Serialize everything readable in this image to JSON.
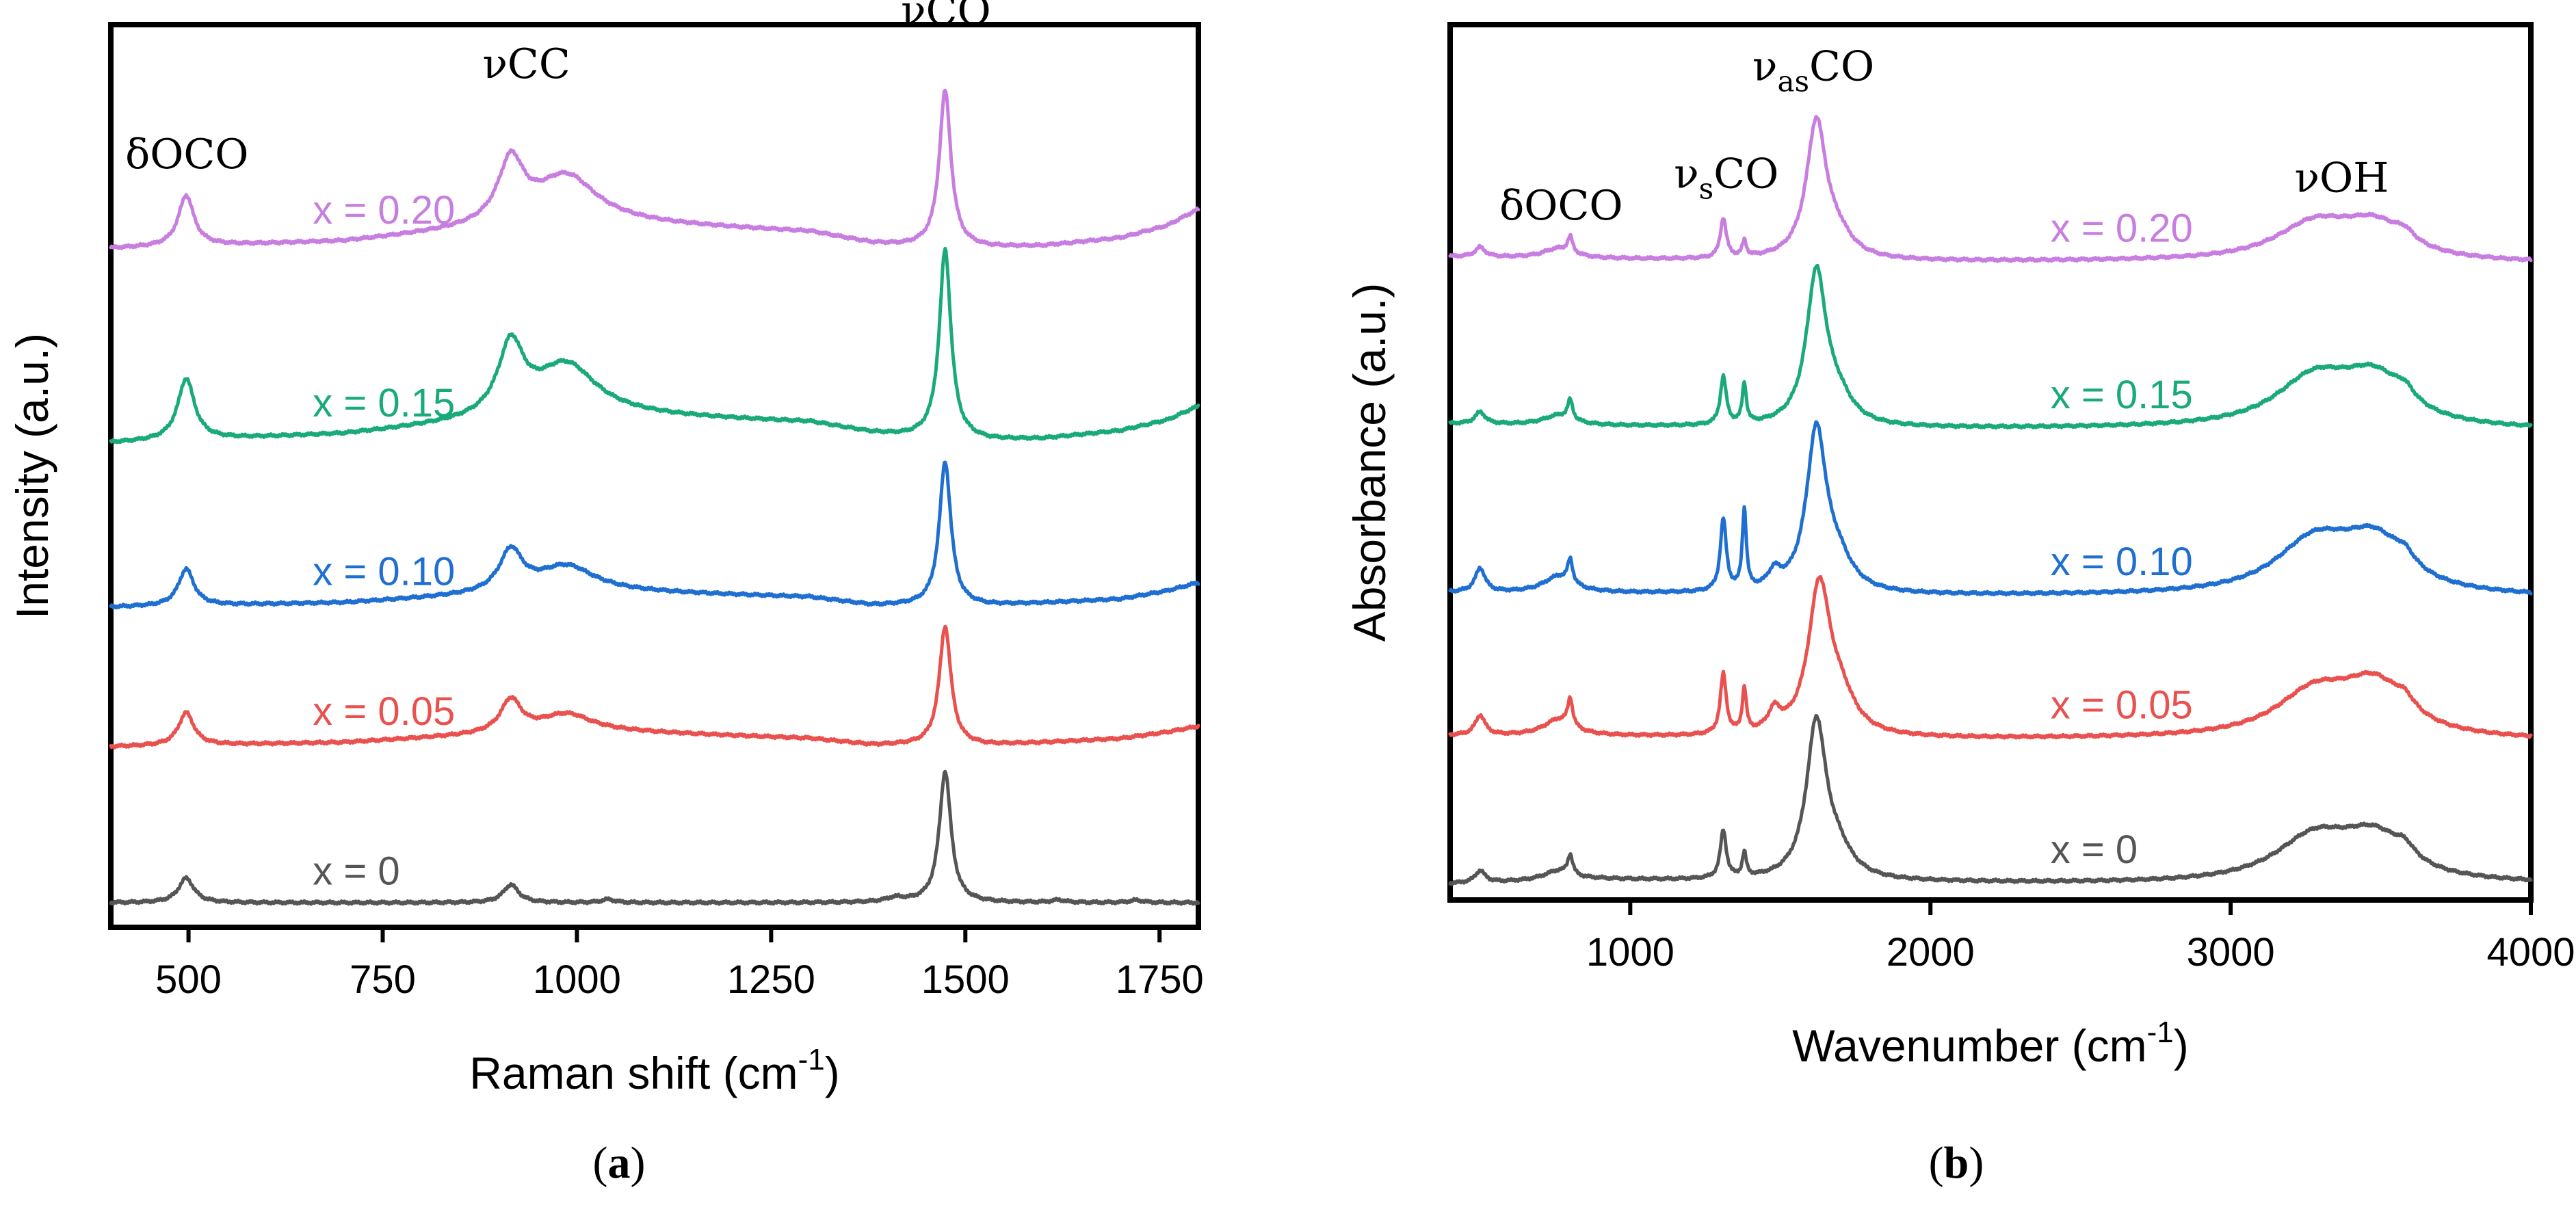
{
  "chart_data": [
    {
      "type": "line",
      "panel": "a",
      "caption_open": "(",
      "caption_letter": "a",
      "caption_close": ")",
      "xlabel_main": "Raman shift (cm",
      "xlabel_sup": "-1",
      "xlabel_close": ")",
      "ylabel": "Intensity (a.u.)",
      "xlim": [
        400,
        1800
      ],
      "xticks": [
        500,
        750,
        1000,
        1250,
        1500,
        1750
      ],
      "xtick_labels": [
        "500",
        "750",
        "1000",
        "1250",
        "1500",
        "1750"
      ],
      "ylim": [
        0,
        11
      ],
      "yticks_shown": false,
      "peak_annotations": [
        {
          "id": "docco",
          "main": "δOCO",
          "sub": "",
          "tail": "",
          "x": 498,
          "y": 9.25
        },
        {
          "id": "vcc",
          "main": "νCC",
          "sub": "",
          "tail": "",
          "x": 935,
          "y": 10.35
        },
        {
          "id": "vco",
          "main": "νCO",
          "sub": "",
          "tail": "",
          "x": 1475,
          "y": 11.0
        }
      ],
      "series": [
        {
          "name": "x = 0.20",
          "color": "#c77ee0",
          "label_x": 660,
          "offset": 8.25,
          "baseline": [
            [
              400,
              0.02
            ],
            [
              700,
              0.1
            ],
            [
              1000,
              0.35
            ],
            [
              1300,
              0.22
            ],
            [
              1380,
              0.08
            ],
            [
              1420,
              0.05
            ],
            [
              1530,
              0.03
            ],
            [
              1600,
              0.05
            ],
            [
              1700,
              0.15
            ],
            [
              1760,
              0.3
            ],
            [
              1800,
              0.5
            ]
          ],
          "peaks": [
            {
              "center": 497,
              "height": 0.62,
              "width": 12
            },
            {
              "center": 915,
              "height": 0.75,
              "width": 20
            },
            {
              "center": 985,
              "height": 0.55,
              "width": 48
            },
            {
              "center": 1474,
              "height": 1.9,
              "width": 9
            }
          ]
        },
        {
          "name": "x = 0.15",
          "color": "#1aaa78",
          "label_x": 660,
          "offset": 5.9,
          "baseline": [
            [
              400,
              0.0
            ],
            [
              700,
              0.1
            ],
            [
              1000,
              0.35
            ],
            [
              1300,
              0.25
            ],
            [
              1380,
              0.12
            ],
            [
              1420,
              0.08
            ],
            [
              1530,
              0.03
            ],
            [
              1600,
              0.05
            ],
            [
              1700,
              0.15
            ],
            [
              1760,
              0.28
            ],
            [
              1800,
              0.45
            ]
          ],
          "peaks": [
            {
              "center": 497,
              "height": 0.75,
              "width": 13
            },
            {
              "center": 915,
              "height": 0.85,
              "width": 20
            },
            {
              "center": 985,
              "height": 0.6,
              "width": 48
            },
            {
              "center": 1474,
              "height": 2.3,
              "width": 9
            }
          ]
        },
        {
          "name": "x = 0.10",
          "color": "#1f6fd1",
          "label_x": 660,
          "offset": 3.9,
          "baseline": [
            [
              400,
              0.0
            ],
            [
              700,
              0.05
            ],
            [
              1000,
              0.2
            ],
            [
              1300,
              0.12
            ],
            [
              1380,
              0.02
            ],
            [
              1420,
              0.02
            ],
            [
              1530,
              0.02
            ],
            [
              1600,
              0.05
            ],
            [
              1700,
              0.1
            ],
            [
              1760,
              0.2
            ],
            [
              1800,
              0.3
            ]
          ],
          "peaks": [
            {
              "center": 497,
              "height": 0.45,
              "width": 12
            },
            {
              "center": 915,
              "height": 0.5,
              "width": 18
            },
            {
              "center": 985,
              "height": 0.3,
              "width": 45
            },
            {
              "center": 1474,
              "height": 1.75,
              "width": 9
            }
          ]
        },
        {
          "name": "x = 0.05",
          "color": "#e9514f",
          "label_x": 660,
          "offset": 2.2,
          "baseline": [
            [
              400,
              0.0
            ],
            [
              700,
              0.05
            ],
            [
              1000,
              0.2
            ],
            [
              1300,
              0.1
            ],
            [
              1380,
              0.02
            ],
            [
              1420,
              0.02
            ],
            [
              1530,
              0.02
            ],
            [
              1600,
              0.05
            ],
            [
              1700,
              0.1
            ],
            [
              1760,
              0.18
            ],
            [
              1800,
              0.25
            ]
          ],
          "peaks": [
            {
              "center": 497,
              "height": 0.4,
              "width": 12
            },
            {
              "center": 915,
              "height": 0.4,
              "width": 16
            },
            {
              "center": 985,
              "height": 0.2,
              "width": 40
            },
            {
              "center": 1474,
              "height": 1.45,
              "width": 9
            }
          ]
        },
        {
          "name": "x = 0",
          "color": "#555555",
          "label_x": 660,
          "offset": 0.3,
          "baseline": [
            [
              400,
              0.0
            ],
            [
              1800,
              0.0
            ]
          ],
          "peaks": [
            {
              "center": 497,
              "height": 0.3,
              "width": 12
            },
            {
              "center": 915,
              "height": 0.22,
              "width": 12
            },
            {
              "center": 1040,
              "height": 0.04,
              "width": 10
            },
            {
              "center": 1410,
              "height": 0.05,
              "width": 15
            },
            {
              "center": 1474,
              "height": 1.6,
              "width": 9
            },
            {
              "center": 1620,
              "height": 0.03,
              "width": 10
            },
            {
              "center": 1720,
              "height": 0.03,
              "width": 10
            }
          ]
        }
      ]
    },
    {
      "type": "line",
      "panel": "b",
      "caption_open": "(",
      "caption_letter": "b",
      "caption_close": ")",
      "xlabel_main": "Wavenumber (cm",
      "xlabel_sup": "-1",
      "xlabel_close": ")",
      "ylabel": "Absorbance (a.u.)",
      "xlim": [
        400,
        4000
      ],
      "xticks": [
        1000,
        2000,
        3000,
        4000
      ],
      "xtick_labels": [
        "1000",
        "2000",
        "3000",
        "4000"
      ],
      "ylim": [
        0,
        11
      ],
      "yticks_shown": false,
      "peak_annotations": [
        {
          "id": "docco",
          "main": "δOCO",
          "sub": "",
          "tail": "",
          "x": 770,
          "y": 8.55
        },
        {
          "id": "vsco",
          "main": "ν",
          "sub": "s",
          "tail": "CO",
          "x": 1320,
          "y": 8.95
        },
        {
          "id": "vasco",
          "main": "ν",
          "sub": "as",
          "tail": "CO",
          "x": 1610,
          "y": 10.3
        },
        {
          "id": "voh",
          "main": "νOH",
          "sub": "",
          "tail": "",
          "x": 3370,
          "y": 8.9
        }
      ],
      "series": [
        {
          "name": "x = 0.20",
          "color": "#c77ee0",
          "label_x": 2400,
          "offset": 8.0,
          "baseline": [
            [
              400,
              0.08
            ],
            [
              900,
              0.05
            ],
            [
              1800,
              0.02
            ],
            [
              2800,
              0.02
            ],
            [
              4000,
              0.0
            ]
          ],
          "peaks": [
            {
              "center": 500,
              "height": 0.12,
              "width": 20
            },
            {
              "center": 760,
              "height": 0.12,
              "width": 60
            },
            {
              "center": 800,
              "height": 0.2,
              "width": 10
            },
            {
              "center": 1310,
              "height": 0.5,
              "width": 12
            },
            {
              "center": 1380,
              "height": 0.2,
              "width": 8
            },
            {
              "center": 1620,
              "height": 1.7,
              "width": 40
            },
            {
              "center": 1690,
              "height": 0.25,
              "width": 60
            },
            {
              "center": 3280,
              "height": 0.45,
              "width": 160
            },
            {
              "center": 3480,
              "height": 0.4,
              "width": 130
            },
            {
              "center": 3580,
              "height": 0.12,
              "width": 40
            }
          ]
        },
        {
          "name": "x = 0.15",
          "color": "#1aaa78",
          "label_x": 2400,
          "offset": 5.9,
          "baseline": [
            [
              400,
              0.08
            ],
            [
              900,
              0.05
            ],
            [
              1800,
              0.02
            ],
            [
              2800,
              0.02
            ],
            [
              4000,
              0.0
            ]
          ],
          "peaks": [
            {
              "center": 500,
              "height": 0.15,
              "width": 20
            },
            {
              "center": 760,
              "height": 0.12,
              "width": 60
            },
            {
              "center": 800,
              "height": 0.25,
              "width": 10
            },
            {
              "center": 1310,
              "height": 0.6,
              "width": 12
            },
            {
              "center": 1380,
              "height": 0.5,
              "width": 8
            },
            {
              "center": 1620,
              "height": 1.9,
              "width": 40
            },
            {
              "center": 1690,
              "height": 0.3,
              "width": 60
            },
            {
              "center": 3280,
              "height": 0.6,
              "width": 160
            },
            {
              "center": 3480,
              "height": 0.55,
              "width": 130
            },
            {
              "center": 3580,
              "height": 0.15,
              "width": 40
            }
          ]
        },
        {
          "name": "x = 0.10",
          "color": "#1f6fd1",
          "label_x": 2400,
          "offset": 3.8,
          "baseline": [
            [
              400,
              0.06
            ],
            [
              900,
              0.05
            ],
            [
              1800,
              0.02
            ],
            [
              2800,
              0.02
            ],
            [
              4000,
              0.0
            ]
          ],
          "peaks": [
            {
              "center": 500,
              "height": 0.3,
              "width": 20
            },
            {
              "center": 760,
              "height": 0.2,
              "width": 60
            },
            {
              "center": 800,
              "height": 0.3,
              "width": 10
            },
            {
              "center": 1310,
              "height": 0.9,
              "width": 12
            },
            {
              "center": 1380,
              "height": 1.0,
              "width": 8
            },
            {
              "center": 1480,
              "height": 0.2,
              "width": 25
            },
            {
              "center": 1620,
              "height": 2.0,
              "width": 40
            },
            {
              "center": 1690,
              "height": 0.35,
              "width": 60
            },
            {
              "center": 3280,
              "height": 0.65,
              "width": 160
            },
            {
              "center": 3480,
              "height": 0.6,
              "width": 130
            },
            {
              "center": 3580,
              "height": 0.15,
              "width": 40
            }
          ]
        },
        {
          "name": "x = 0.05",
          "color": "#e9514f",
          "label_x": 2400,
          "offset": 2.0,
          "baseline": [
            [
              400,
              0.06
            ],
            [
              900,
              0.05
            ],
            [
              1800,
              0.02
            ],
            [
              2800,
              0.02
            ],
            [
              4000,
              0.0
            ]
          ],
          "peaks": [
            {
              "center": 500,
              "height": 0.25,
              "width": 20
            },
            {
              "center": 760,
              "height": 0.2,
              "width": 60
            },
            {
              "center": 800,
              "height": 0.35,
              "width": 10
            },
            {
              "center": 1310,
              "height": 0.75,
              "width": 12
            },
            {
              "center": 1380,
              "height": 0.55,
              "width": 8
            },
            {
              "center": 1480,
              "height": 0.25,
              "width": 25
            },
            {
              "center": 1630,
              "height": 1.85,
              "width": 45
            },
            {
              "center": 1700,
              "height": 0.4,
              "width": 60
            },
            {
              "center": 3280,
              "height": 0.55,
              "width": 160
            },
            {
              "center": 3480,
              "height": 0.6,
              "width": 130
            },
            {
              "center": 3580,
              "height": 0.15,
              "width": 40
            }
          ]
        },
        {
          "name": "x = 0",
          "color": "#555555",
          "label_x": 2400,
          "offset": 0.2,
          "baseline": [
            [
              400,
              0.0
            ],
            [
              900,
              0.05
            ],
            [
              1800,
              0.02
            ],
            [
              2800,
              0.0
            ],
            [
              4000,
              0.0
            ]
          ],
          "peaks": [
            {
              "center": 500,
              "height": 0.15,
              "width": 20
            },
            {
              "center": 760,
              "height": 0.12,
              "width": 60
            },
            {
              "center": 800,
              "height": 0.25,
              "width": 10
            },
            {
              "center": 1310,
              "height": 0.6,
              "width": 12
            },
            {
              "center": 1380,
              "height": 0.3,
              "width": 8
            },
            {
              "center": 1620,
              "height": 1.95,
              "width": 40
            },
            {
              "center": 1690,
              "height": 0.3,
              "width": 60
            },
            {
              "center": 3280,
              "height": 0.55,
              "width": 160
            },
            {
              "center": 3480,
              "height": 0.5,
              "width": 130
            },
            {
              "center": 3580,
              "height": 0.15,
              "width": 40
            }
          ]
        }
      ]
    }
  ]
}
